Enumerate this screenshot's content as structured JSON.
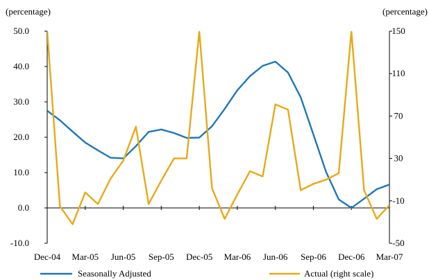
{
  "chart_data": {
    "type": "line",
    "left_axis": {
      "unit_label": "(percentage)",
      "ylim": [
        -10,
        50
      ],
      "ticks": [
        -10,
        0,
        10,
        20,
        30,
        40,
        50
      ],
      "tick_labels": [
        "-10.0",
        "0.0",
        "10.0",
        "20.0",
        "30.0",
        "40.0",
        "50.0"
      ]
    },
    "right_axis": {
      "unit_label": "(percentage)",
      "ylim": [
        -50,
        150
      ],
      "ticks": [
        -50,
        -10,
        30,
        70,
        110,
        150
      ],
      "tick_labels": [
        "-50",
        "-10",
        "30",
        "70",
        "110",
        "150"
      ]
    },
    "x_tick_labels": [
      "Dec-04",
      "Mar-05",
      "Jun-05",
      "Sep-05",
      "Dec-05",
      "Mar-06",
      "Jun-06",
      "Sep-06",
      "Dec-06",
      "Mar-07"
    ],
    "x": [
      "Dec-04",
      "Jan-05",
      "Feb-05",
      "Mar-05",
      "Apr-05",
      "May-05",
      "Jun-05",
      "Jul-05",
      "Aug-05",
      "Sep-05",
      "Oct-05",
      "Nov-05",
      "Dec-05",
      "Jan-06",
      "Feb-06",
      "Mar-06",
      "Apr-06",
      "May-06",
      "Jun-06",
      "Jul-06",
      "Aug-06",
      "Sep-06",
      "Oct-06",
      "Nov-06",
      "Dec-06",
      "Jan-07",
      "Feb-07",
      "Mar-07"
    ],
    "series": [
      {
        "name": "Seasonally Adjusted",
        "axis": "left",
        "color": "#1f77b4",
        "values": [
          27.5,
          24.8,
          21.6,
          18.5,
          16.3,
          14.2,
          14.0,
          17.5,
          21.5,
          22.2,
          21.2,
          19.8,
          19.9,
          23.1,
          28.0,
          33.3,
          37.3,
          40.2,
          41.4,
          38.3,
          31.3,
          20.8,
          10.2,
          2.4,
          0.0,
          2.6,
          5.3,
          6.6
        ]
      },
      {
        "name": "Actual (right scale)",
        "axis": "right",
        "color": "#e8a917",
        "values": [
          150,
          -15,
          -32,
          -2,
          -13,
          11,
          28,
          60,
          -13,
          9,
          30,
          30,
          150,
          2,
          -27,
          -4,
          18,
          13,
          81,
          76,
          0,
          6,
          10,
          16,
          150,
          0,
          -27,
          -14
        ]
      }
    ],
    "legend_position": "bottom",
    "grid": false
  }
}
